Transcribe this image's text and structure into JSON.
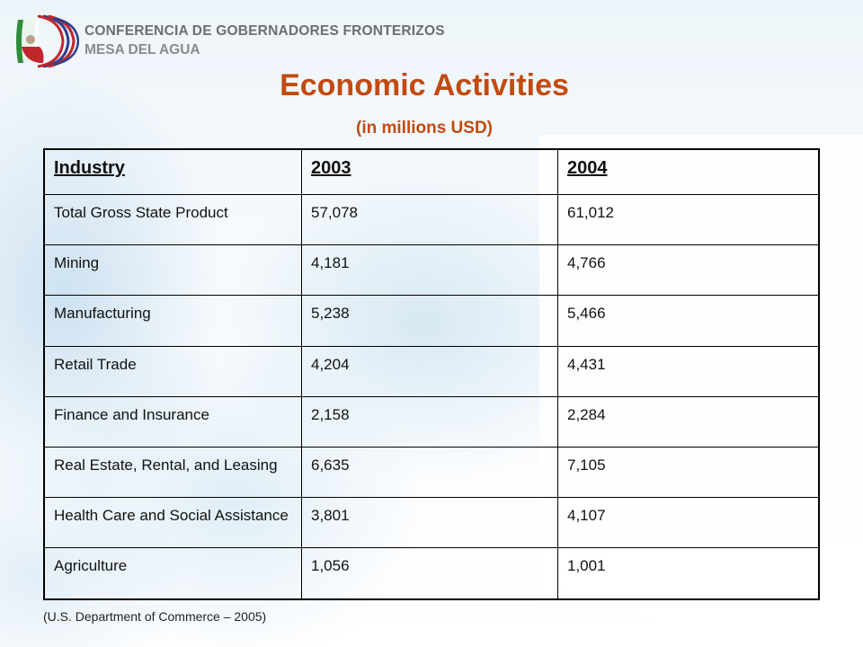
{
  "header": {
    "org_line1": "CONFERENCIA DE GOBERNADORES FRONTERIZOS",
    "org_line2": "MESA DEL AGUA"
  },
  "title": "Economic Activities",
  "subtitle": "(in millions USD)",
  "table": {
    "headers": [
      "Industry",
      "2003",
      "2004"
    ],
    "rows": [
      [
        "Total Gross State Product",
        "57,078",
        "61,012"
      ],
      [
        "Mining",
        "4,181",
        "4,766"
      ],
      [
        "Manufacturing",
        "5,238",
        "5,466"
      ],
      [
        "Retail Trade",
        "4,204",
        "4,431"
      ],
      [
        "Finance and Insurance",
        "2,158",
        "2,284"
      ],
      [
        "Real Estate, Rental, and Leasing",
        "6,635",
        "7,105"
      ],
      [
        "Health Care and Social Assistance",
        "3,801",
        "4,107"
      ],
      [
        "Agriculture",
        "1,056",
        "1,001"
      ]
    ]
  },
  "source": "(U.S. Department of Commerce – 2005)",
  "colors": {
    "title": "#c24a10",
    "logo_red": "#c0272d",
    "logo_green": "#2e8b3a",
    "logo_blue": "#2d3f8f"
  }
}
